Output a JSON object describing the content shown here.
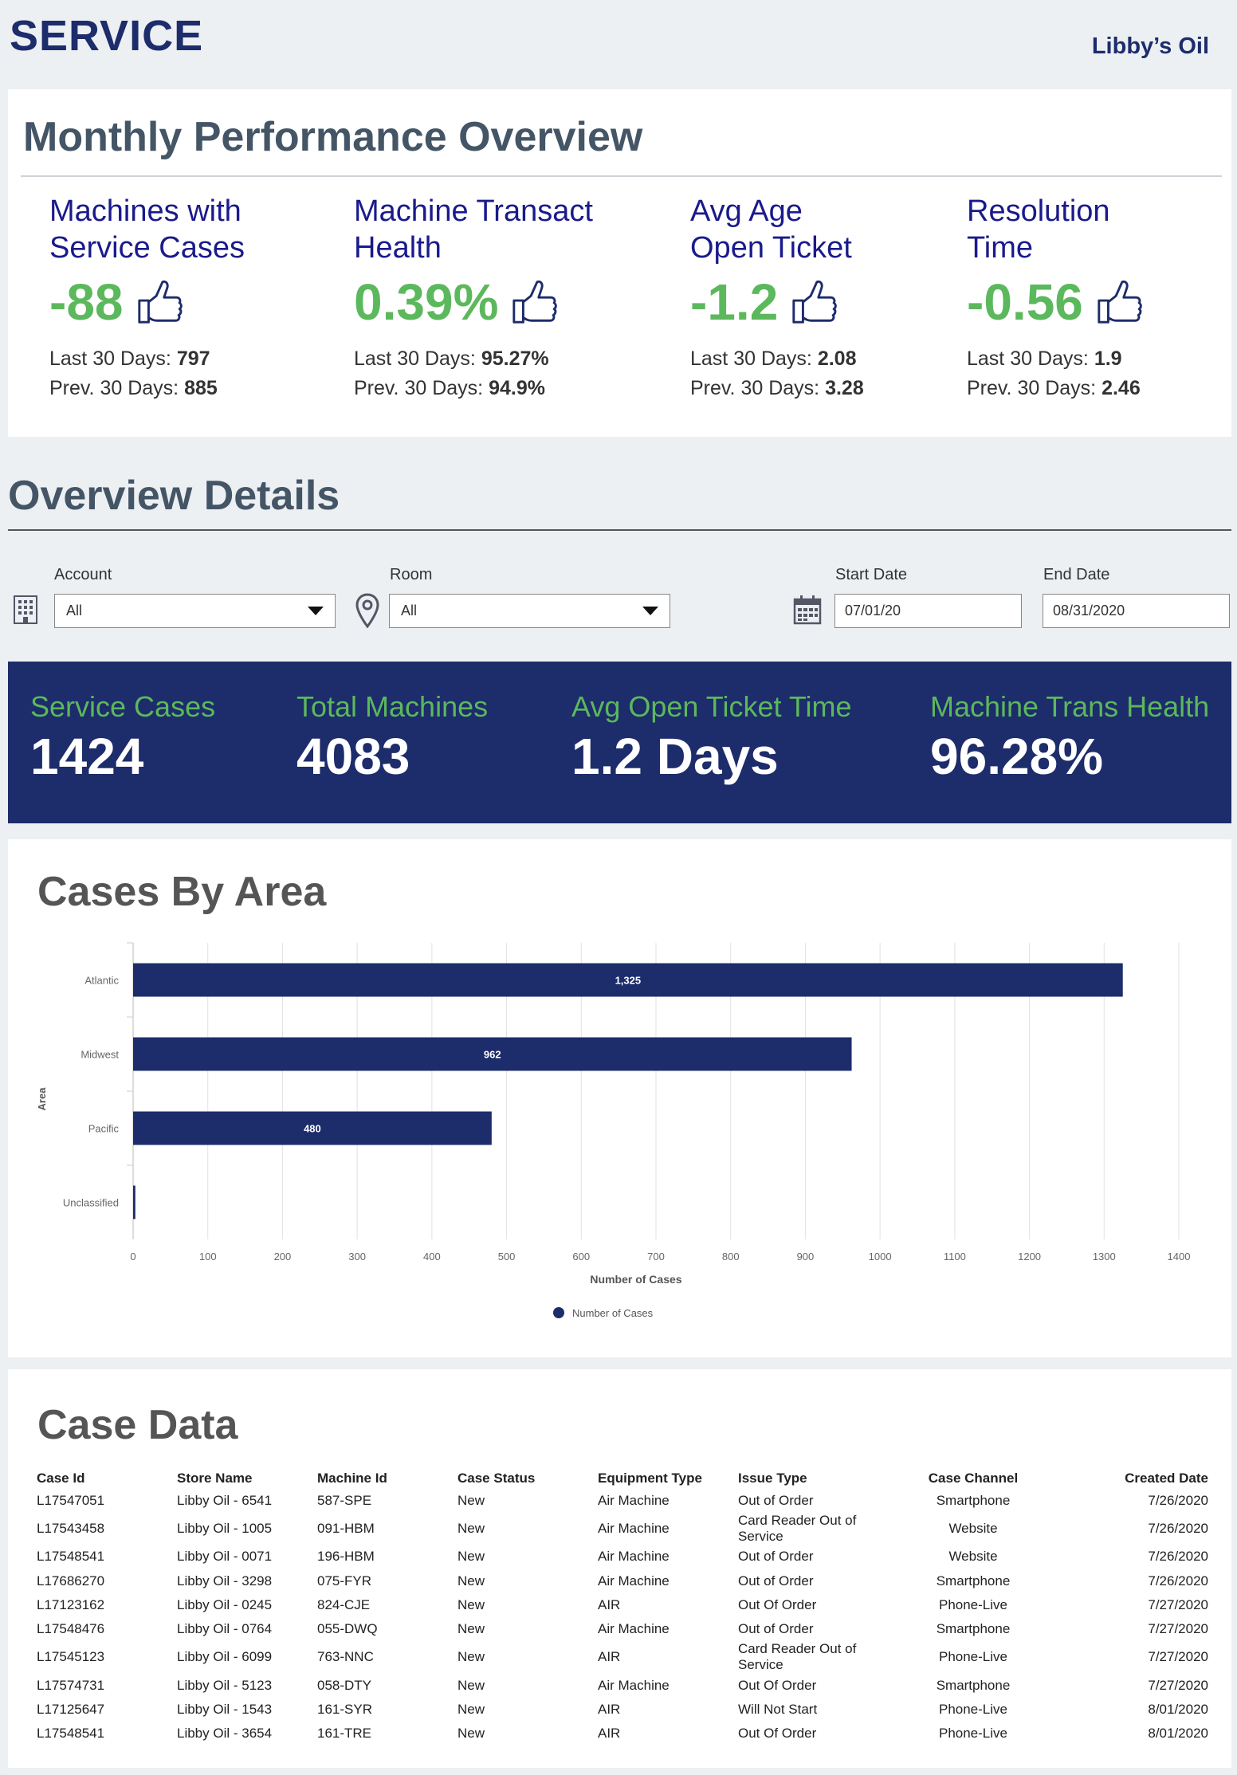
{
  "header": {
    "title": "SERVICE",
    "company": "Libby’s Oil"
  },
  "performance": {
    "title": "Monthly Performance Overview",
    "kpis": [
      {
        "title_line1": "Machines with",
        "title_line2": "Service Cases",
        "value": "-88",
        "last_label": "Last 30 Days:",
        "last_value": "797",
        "prev_label": "Prev. 30 Days:",
        "prev_value": "885",
        "icon": "thumbs-up-icon"
      },
      {
        "title_line1": "Machine Transact",
        "title_line2": "Health",
        "value": "0.39%",
        "last_label": "Last 30 Days:",
        "last_value": "95.27%",
        "prev_label": "Prev. 30 Days:",
        "prev_value": "94.9%",
        "icon": "thumbs-up-icon"
      },
      {
        "title_line1": "Avg Age",
        "title_line2": "Open Ticket",
        "value": "-1.2",
        "last_label": "Last 30 Days:",
        "last_value": "2.08",
        "prev_label": "Prev. 30 Days:",
        "prev_value": "3.28",
        "icon": "thumbs-up-icon"
      },
      {
        "title_line1": "Resolution",
        "title_line2": "Time",
        "value": "-0.56",
        "last_label": "Last 30 Days:",
        "last_value": "1.9",
        "prev_label": "Prev. 30 Days:",
        "prev_value": "2.46",
        "icon": "thumbs-up-icon"
      }
    ]
  },
  "overview": {
    "title": "Overview Details",
    "filters": {
      "account_label": "Account",
      "account_value": "All",
      "room_label": "Room",
      "room_value": "All",
      "start_label": "Start Date",
      "start_value": "07/01/20",
      "end_label": "End Date",
      "end_value": "08/31/2020"
    }
  },
  "stats": [
    {
      "label": "Service Cases",
      "value": "1424"
    },
    {
      "label": "Total Machines",
      "value": "4083"
    },
    {
      "label": "Avg Open Ticket Time",
      "value": "1.2 Days"
    },
    {
      "label": "Machine Trans Health",
      "value": "96.28%"
    }
  ],
  "chart_data": {
    "type": "bar",
    "orientation": "horizontal",
    "title": "Cases By Area",
    "categories": [
      "Atlantic",
      "Midwest",
      "Pacific",
      "Unclassified"
    ],
    "series": [
      {
        "name": "Number of Cases",
        "values": [
          1325,
          962,
          480,
          3
        ],
        "labels": [
          "1,325",
          "962",
          "480",
          ""
        ]
      }
    ],
    "xlabel": "Number of Cases",
    "ylabel": "Area",
    "xlim": [
      0,
      1400
    ],
    "xticks": [
      0,
      100,
      200,
      300,
      400,
      500,
      600,
      700,
      800,
      900,
      1000,
      1100,
      1200,
      1300,
      1400
    ],
    "grid": true,
    "legend": "bottom-center",
    "bar_color": "#1d2c6b"
  },
  "case_data": {
    "title": "Case Data",
    "columns": [
      "Case Id",
      "Store Name",
      "Machine Id",
      "Case Status",
      "Equipment Type",
      "Issue Type",
      "Case Channel",
      "Created Date"
    ],
    "rows": [
      [
        "L17547051",
        "Libby Oil - 6541",
        "587-SPE",
        "New",
        "Air Machine",
        "Out of Order",
        "Smartphone",
        "7/26/2020"
      ],
      [
        "L17543458",
        "Libby Oil - 1005",
        "091-HBM",
        "New",
        "Air Machine",
        "Card Reader Out of Service",
        "Website",
        "7/26/2020"
      ],
      [
        "L17548541",
        "Libby Oil - 0071",
        "196-HBM",
        "New",
        "Air Machine",
        "Out of Order",
        "Website",
        "7/26/2020"
      ],
      [
        "L17686270",
        "Libby Oil - 3298",
        "075-FYR",
        "New",
        "Air Machine",
        "Out of Order",
        "Smartphone",
        "7/26/2020"
      ],
      [
        "L17123162",
        "Libby Oil - 0245",
        "824-CJE",
        "New",
        "AIR",
        "Out Of Order",
        "Phone-Live",
        "7/27/2020"
      ],
      [
        "L17548476",
        "Libby Oil - 0764",
        "055-DWQ",
        "New",
        "Air Machine",
        "Out of Order",
        "Smartphone",
        "7/27/2020"
      ],
      [
        "L17545123",
        "Libby Oil - 6099",
        "763-NNC",
        "New",
        "AIR",
        "Card Reader Out of Service",
        "Phone-Live",
        "7/27/2020"
      ],
      [
        "L17574731",
        "Libby Oil - 5123",
        "058-DTY",
        "New",
        "Air Machine",
        "Out Of Order",
        "Smartphone",
        "7/27/2020"
      ],
      [
        "L17125647",
        "Libby Oil - 1543",
        "161-SYR",
        "New",
        "AIR",
        "Will Not Start",
        "Phone-Live",
        "8/01/2020"
      ],
      [
        "L17548541",
        "Libby Oil - 3654",
        "161-TRE",
        "New",
        "AIR",
        "Out Of Order",
        "Phone-Live",
        "8/01/2020"
      ]
    ]
  }
}
